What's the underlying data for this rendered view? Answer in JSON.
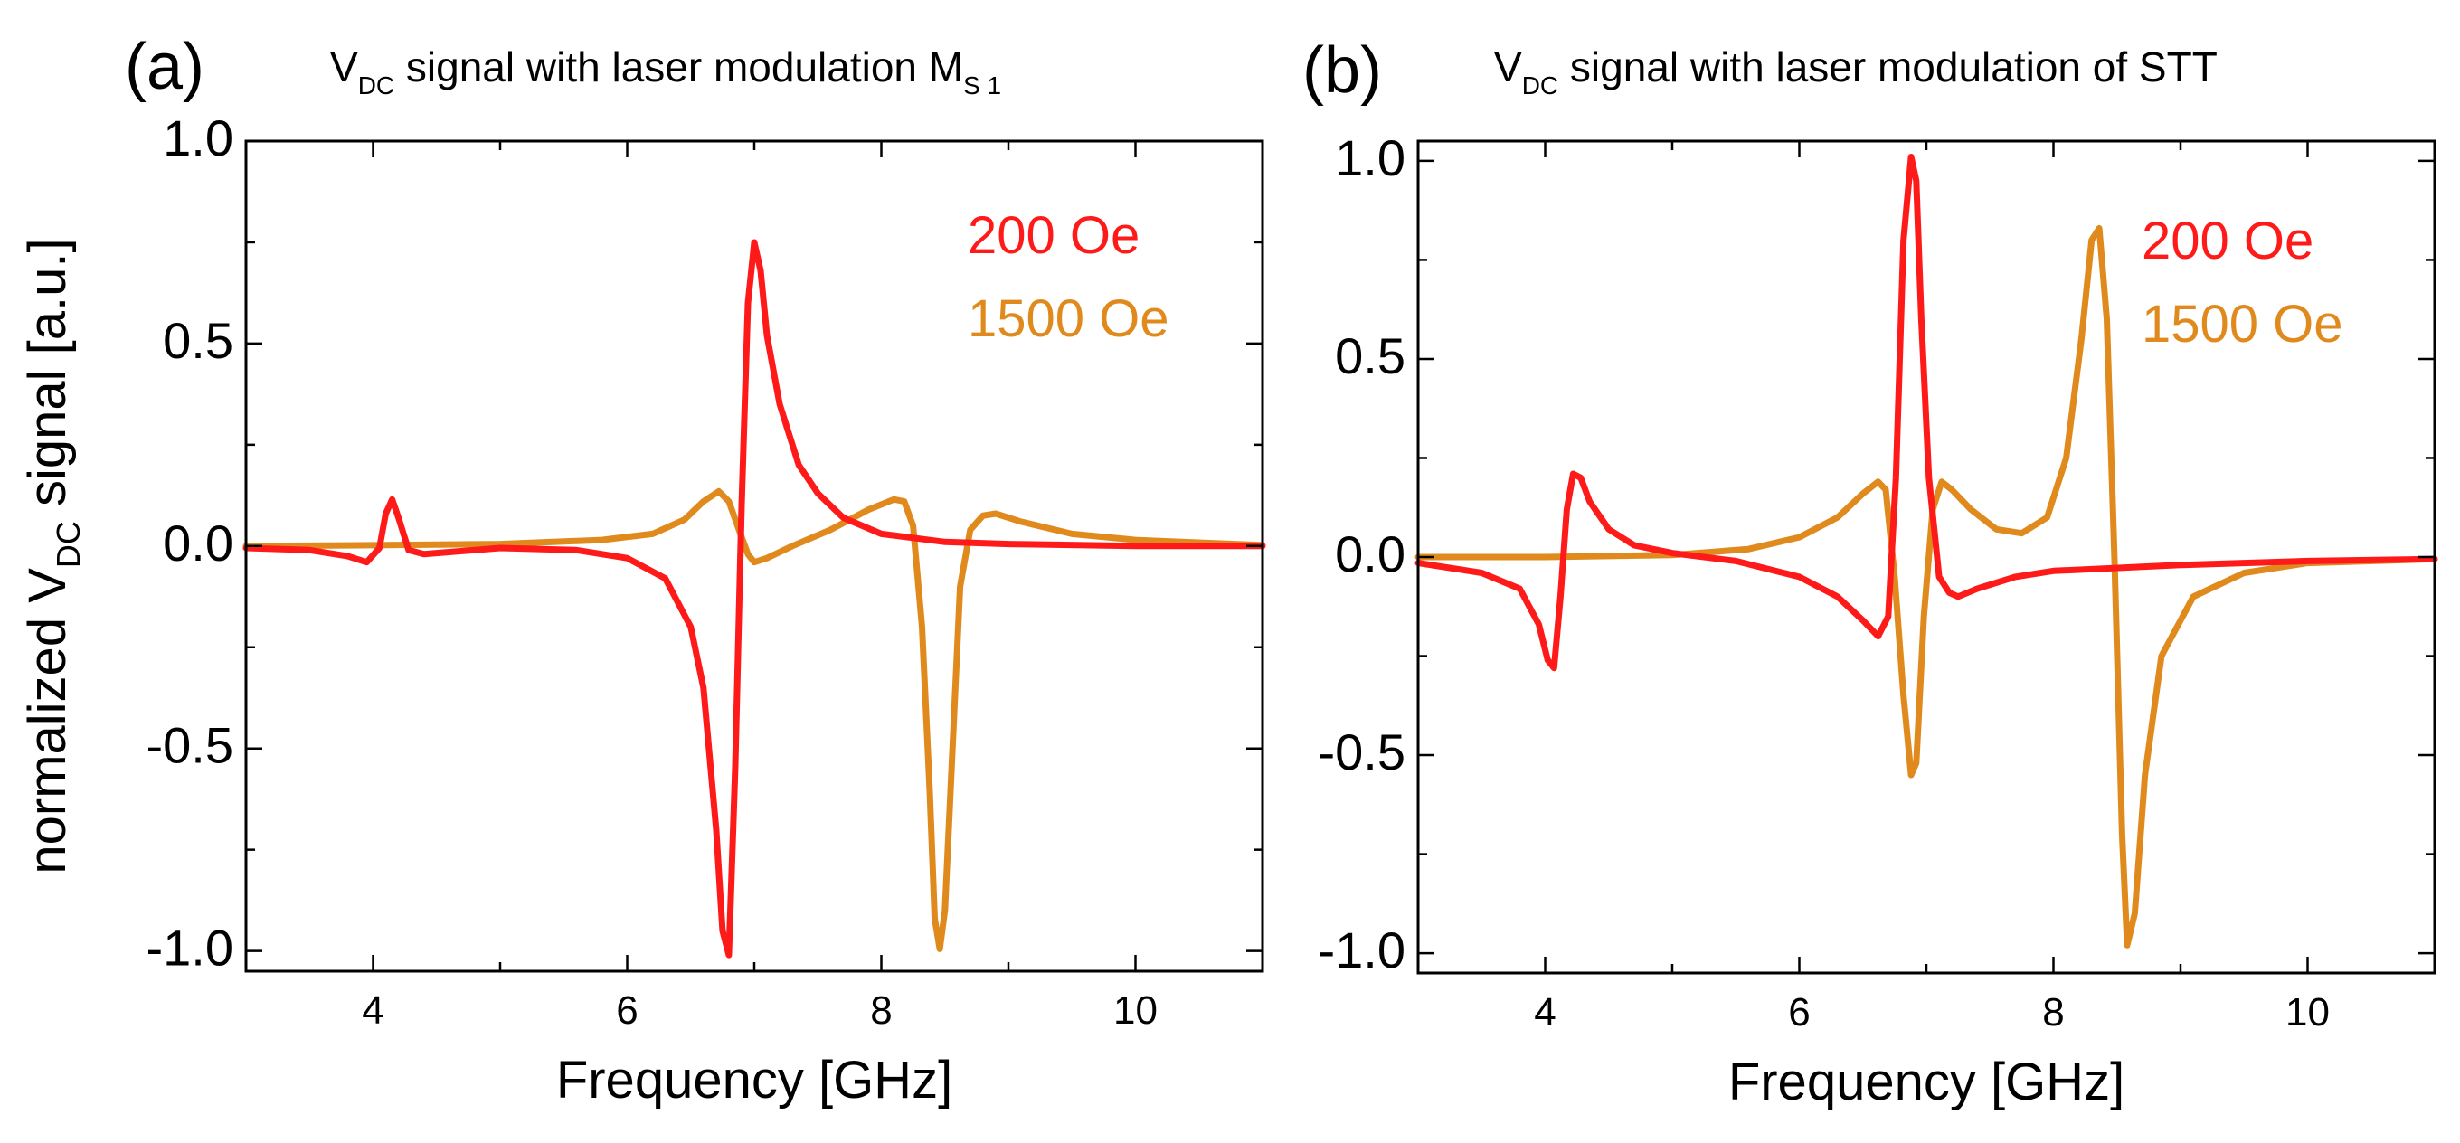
{
  "colors": {
    "series_200": "#ff1a1a",
    "series_1500": "#e08a1e"
  },
  "chart_data": [
    {
      "type": "line",
      "panel_label": "(a)",
      "title": {
        "main": "V",
        "sub": "DC",
        "rest": " signal with laser modulation M",
        "tail_sub": "S 1"
      },
      "xlabel": "Frequency [GHz]",
      "ylabel": {
        "main": "normalized V",
        "sub": "DC",
        "rest": " signal [a.u.]"
      },
      "xlim": [
        3,
        11
      ],
      "ylim": [
        -1.05,
        1.0
      ],
      "xticks": [
        4,
        6,
        8,
        10
      ],
      "xtick_labels": [
        "4",
        "6",
        "8",
        "10"
      ],
      "yticks": [
        -1.0,
        -0.5,
        0.0,
        0.5,
        1.0
      ],
      "ytick_labels": [
        "-1.0",
        "-0.5",
        "0.0",
        "0.5",
        "1.0"
      ],
      "legend": [
        "200 Oe",
        "1500 Oe"
      ],
      "series": [
        {
          "name": "200 Oe",
          "x": [
            3.0,
            3.5,
            3.8,
            3.95,
            4.05,
            4.1,
            4.15,
            4.2,
            4.28,
            4.4,
            4.6,
            5.0,
            5.6,
            6.0,
            6.3,
            6.5,
            6.6,
            6.7,
            6.75,
            6.8,
            6.85,
            6.9,
            6.95,
            7.0,
            7.05,
            7.1,
            7.2,
            7.35,
            7.5,
            7.7,
            8.0,
            8.5,
            9.0,
            10.0,
            11.0
          ],
          "y": [
            -0.005,
            -0.01,
            -0.025,
            -0.04,
            -0.005,
            0.08,
            0.115,
            0.07,
            -0.01,
            -0.02,
            -0.015,
            -0.005,
            -0.01,
            -0.03,
            -0.08,
            -0.2,
            -0.35,
            -0.7,
            -0.95,
            -1.01,
            -0.55,
            0.1,
            0.6,
            0.75,
            0.68,
            0.52,
            0.35,
            0.2,
            0.13,
            0.07,
            0.03,
            0.01,
            0.005,
            0.0,
            0.0
          ]
        },
        {
          "name": "1500 Oe",
          "x": [
            3.0,
            4.0,
            5.0,
            5.8,
            6.2,
            6.45,
            6.6,
            6.72,
            6.8,
            6.88,
            6.95,
            7.0,
            7.1,
            7.3,
            7.6,
            7.9,
            8.1,
            8.18,
            8.25,
            8.32,
            8.38,
            8.42,
            8.46,
            8.5,
            8.56,
            8.62,
            8.7,
            8.8,
            8.9,
            9.1,
            9.5,
            10.0,
            11.0
          ],
          "y": [
            0.0,
            0.002,
            0.005,
            0.015,
            0.03,
            0.065,
            0.11,
            0.135,
            0.11,
            0.04,
            -0.02,
            -0.04,
            -0.03,
            0.0,
            0.04,
            0.09,
            0.115,
            0.11,
            0.05,
            -0.2,
            -0.6,
            -0.92,
            -0.995,
            -0.9,
            -0.5,
            -0.1,
            0.04,
            0.075,
            0.08,
            0.06,
            0.03,
            0.015,
            0.002
          ]
        }
      ]
    },
    {
      "type": "line",
      "panel_label": "(b)",
      "title": {
        "main": "V",
        "sub": "DC",
        "rest": " signal with laser modulation of STT",
        "tail_sub": ""
      },
      "xlabel": "Frequency [GHz]",
      "ylabel": null,
      "xlim": [
        3,
        11
      ],
      "ylim": [
        -1.05,
        1.05
      ],
      "xticks": [
        4,
        6,
        8,
        10
      ],
      "xtick_labels": [
        "4",
        "6",
        "8",
        "10"
      ],
      "yticks": [
        -1.0,
        -0.5,
        0.0,
        0.5,
        1.0
      ],
      "ytick_labels": [
        "-1.0",
        "-0.5",
        "0.0",
        "0.5",
        "1.0"
      ],
      "legend": [
        "200 Oe",
        "1500 Oe"
      ],
      "series": [
        {
          "name": "200 Oe",
          "x": [
            3.0,
            3.5,
            3.8,
            3.95,
            4.02,
            4.07,
            4.12,
            4.17,
            4.22,
            4.28,
            4.35,
            4.5,
            4.7,
            5.0,
            5.5,
            6.0,
            6.3,
            6.5,
            6.62,
            6.7,
            6.76,
            6.82,
            6.88,
            6.92,
            6.96,
            7.02,
            7.1,
            7.18,
            7.25,
            7.4,
            7.7,
            8.0,
            9.0,
            10.0,
            11.0
          ],
          "y": [
            -0.015,
            -0.04,
            -0.08,
            -0.17,
            -0.26,
            -0.28,
            -0.1,
            0.12,
            0.21,
            0.2,
            0.14,
            0.07,
            0.03,
            0.01,
            -0.01,
            -0.05,
            -0.1,
            -0.16,
            -0.2,
            -0.15,
            0.2,
            0.8,
            1.01,
            0.95,
            0.6,
            0.2,
            -0.05,
            -0.09,
            -0.1,
            -0.08,
            -0.05,
            -0.035,
            -0.02,
            -0.01,
            -0.005
          ]
        },
        {
          "name": "1500 Oe",
          "x": [
            3.0,
            4.0,
            5.0,
            5.6,
            6.0,
            6.3,
            6.5,
            6.62,
            6.68,
            6.75,
            6.82,
            6.88,
            6.92,
            6.98,
            7.05,
            7.12,
            7.2,
            7.35,
            7.55,
            7.75,
            7.95,
            8.1,
            8.22,
            8.3,
            8.36,
            8.42,
            8.48,
            8.54,
            8.58,
            8.64,
            8.72,
            8.85,
            9.1,
            9.5,
            10.0,
            11.0
          ],
          "y": [
            0.0,
            0.0,
            0.005,
            0.02,
            0.05,
            0.1,
            0.16,
            0.19,
            0.17,
            -0.05,
            -0.35,
            -0.55,
            -0.52,
            -0.15,
            0.12,
            0.19,
            0.17,
            0.12,
            0.07,
            0.06,
            0.1,
            0.25,
            0.55,
            0.8,
            0.83,
            0.6,
            0.0,
            -0.7,
            -0.98,
            -0.9,
            -0.55,
            -0.25,
            -0.1,
            -0.04,
            -0.015,
            -0.005
          ]
        }
      ]
    }
  ]
}
